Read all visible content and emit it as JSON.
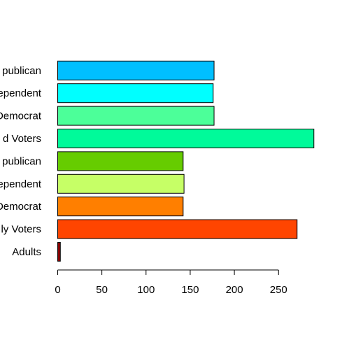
{
  "chart_data": {
    "type": "bar",
    "orientation": "horizontal",
    "categories": [
      "Adults",
      "Likely Voters",
      "Likely Voters - Democrat",
      "Likely Voters - Independent",
      "Likely Voters - Republican",
      "Registered Voters",
      "Registered Voters - Democrat",
      "Registered Voters - Independent",
      "Registered Voters - Republican"
    ],
    "category_labels": [
      "Adults",
      "ly Voters",
      "Democrat",
      "ependent",
      "publican",
      "d Voters",
      "Democrat",
      "ependent",
      "publican"
    ],
    "values": [
      3,
      271,
      142,
      143,
      142,
      290,
      177,
      176,
      177
    ],
    "colors": [
      "#8B0000",
      "#FF4500",
      "#FF7F00",
      "#C6FF66",
      "#66CC00",
      "#00FA9A",
      "#4CFF99",
      "#00FFFF",
      "#00BFFF"
    ],
    "x_ticks": [
      0,
      50,
      100,
      150,
      200,
      250
    ],
    "xlim": [
      0,
      290
    ],
    "title": "",
    "xlabel": "",
    "ylabel": "",
    "grid": false,
    "legend": "none"
  }
}
